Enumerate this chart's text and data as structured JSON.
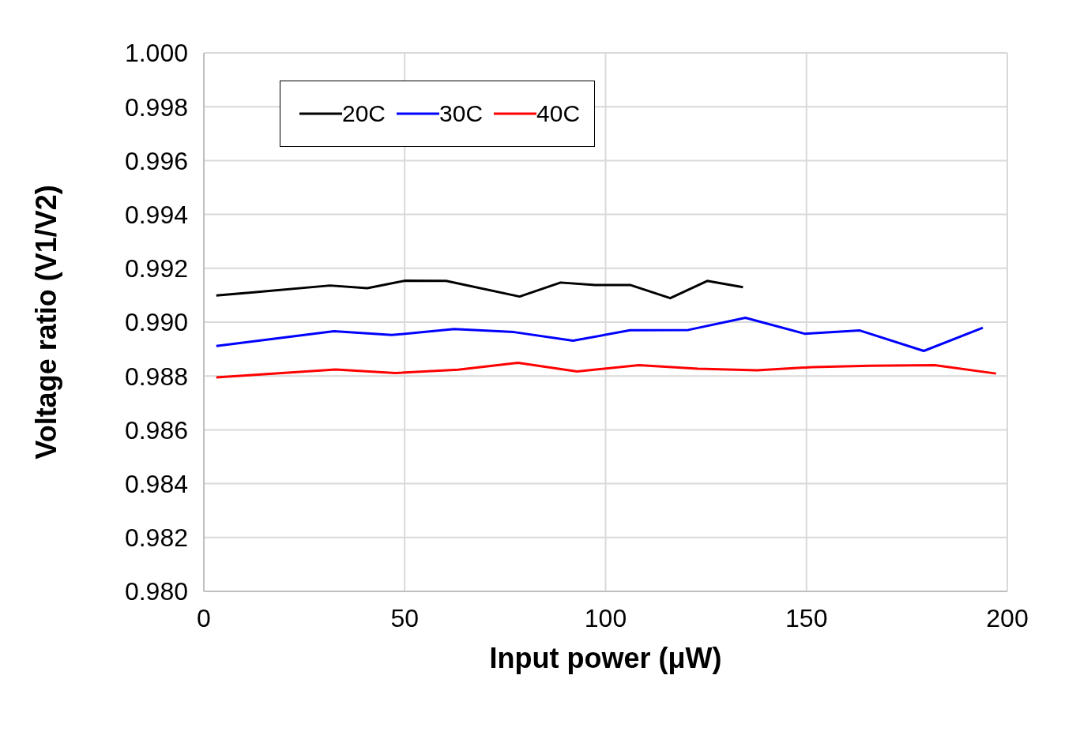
{
  "chart_data": {
    "type": "line",
    "xlabel": "Input power (μW)",
    "ylabel": "Voltage ratio (V1/V2)",
    "xlim": [
      0,
      200
    ],
    "xticks": [
      0,
      50,
      100,
      150,
      200
    ],
    "ylim": [
      0.98,
      1.0
    ],
    "yticks": [
      {
        "value": 0.98,
        "label": "0.980"
      },
      {
        "value": 0.982,
        "label": "0.982"
      },
      {
        "value": 0.984,
        "label": "0.984"
      },
      {
        "value": 0.986,
        "label": "0.986"
      },
      {
        "value": 0.988,
        "label": "0.988"
      },
      {
        "value": 0.99,
        "label": "0.990"
      },
      {
        "value": 0.992,
        "label": "0.992"
      },
      {
        "value": 0.994,
        "label": "0.994"
      },
      {
        "value": 0.996,
        "label": "0.996"
      },
      {
        "value": 0.998,
        "label": "0.998"
      },
      {
        "value": 1.0,
        "label": "1.000"
      }
    ],
    "grid": true,
    "legend": "top left",
    "marker": "none",
    "line_style": "solid",
    "series": [
      {
        "name": "20C",
        "color": "#000000",
        "x": [
          3.1,
          12.4,
          31.4,
          40.7,
          50.1,
          60.3,
          78.6,
          88.8,
          97.4,
          106.1,
          116.1,
          125.3,
          134.2
        ],
        "values": [
          0.99099,
          0.99111,
          0.99136,
          0.99126,
          0.99154,
          0.99153,
          0.99095,
          0.99147,
          0.99138,
          0.99138,
          0.99089,
          0.99153,
          0.9913
        ]
      },
      {
        "name": "30C",
        "color": "#0000ff",
        "x": [
          3.1,
          32.4,
          46.8,
          62.3,
          77.2,
          91.9,
          106.1,
          120.6,
          134.8,
          149.5,
          163.3,
          179.2,
          193.9
        ],
        "values": [
          0.98911,
          0.98966,
          0.98952,
          0.98974,
          0.98963,
          0.98931,
          0.9897,
          0.98971,
          0.99016,
          0.98957,
          0.98969,
          0.98893,
          0.98979
        ]
      },
      {
        "name": "40C",
        "color": "#ff0000",
        "x": [
          3.1,
          32.8,
          47.7,
          63.3,
          78.2,
          92.9,
          108.3,
          123,
          137.7,
          151.5,
          165.8,
          181.9,
          197.2
        ],
        "values": [
          0.98795,
          0.98824,
          0.98811,
          0.98823,
          0.98849,
          0.98817,
          0.9884,
          0.98827,
          0.98821,
          0.98833,
          0.98838,
          0.9884,
          0.98809
        ]
      }
    ]
  }
}
